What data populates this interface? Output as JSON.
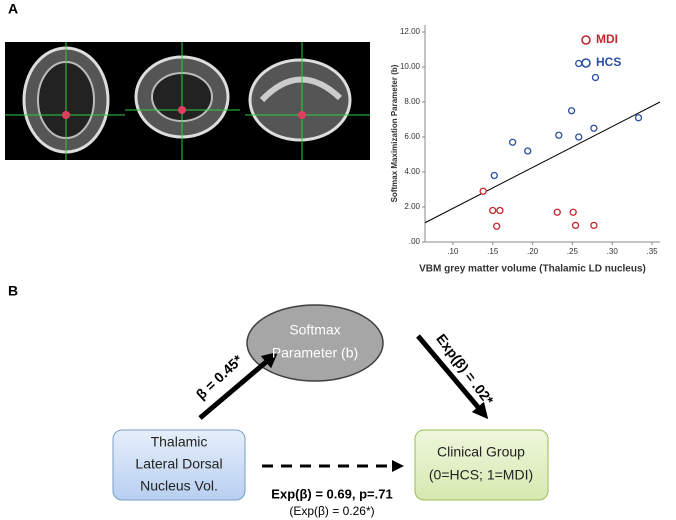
{
  "panel_labels": [
    "A",
    "B"
  ],
  "chart_data": {
    "type": "scatter",
    "xlabel": "VBM grey matter volume (Thalamic LD nucleus)",
    "ylabel": "Softmax Maximization Parameter (b)",
    "xlim": [
      0.065,
      0.36
    ],
    "ylim": [
      0,
      12.4
    ],
    "xticks": [
      {
        "value": 0.1,
        "label": ".10"
      },
      {
        "value": 0.15,
        "label": ".15"
      },
      {
        "value": 0.2,
        "label": ".20"
      },
      {
        "value": 0.25,
        "label": ".25"
      },
      {
        "value": 0.3,
        "label": ".30"
      },
      {
        "value": 0.35,
        "label": ".35"
      }
    ],
    "yticks": [
      {
        "value": 0,
        "label": ".00"
      },
      {
        "value": 2,
        "label": "2.00"
      },
      {
        "value": 4,
        "label": "4.00"
      },
      {
        "value": 6,
        "label": "6.00"
      },
      {
        "value": 8,
        "label": "8.00"
      },
      {
        "value": 10,
        "label": "10.00"
      },
      {
        "value": 12,
        "label": "12.00"
      }
    ],
    "legend": "upper right",
    "series": [
      {
        "name": "MDI",
        "color": "#c0282d",
        "x": [
          0.138,
          0.15,
          0.159,
          0.155,
          0.231,
          0.251,
          0.254,
          0.277
        ],
        "values": [
          2.9,
          1.8,
          1.8,
          0.9,
          1.7,
          1.7,
          0.95,
          0.95
        ]
      },
      {
        "name": "HCS",
        "color": "#2a4ea0",
        "x": [
          0.258,
          0.279,
          0.249,
          0.333,
          0.277,
          0.233,
          0.258,
          0.175,
          0.194,
          0.152
        ],
        "values": [
          10.2,
          9.4,
          7.5,
          7.1,
          6.5,
          6.1,
          6.0,
          5.7,
          5.2,
          3.8
        ]
      }
    ],
    "fit_line": {
      "color": "#000000",
      "x": [
        0.065,
        0.36
      ],
      "values": [
        1.1,
        8.0
      ]
    }
  },
  "diagram": {
    "nodes": [
      {
        "lines": [
          "Softmax",
          "Parameter (b)"
        ]
      },
      {
        "lines": [
          "Thalamic",
          "Lateral Dorsal",
          "Nucleus Vol."
        ]
      },
      {
        "lines": [
          "Clinical Group",
          "(0=HCS; 1=MDI)"
        ]
      }
    ],
    "edges": [
      {
        "label": "β = 0.45*"
      },
      {
        "label": "Exp(β) = .02*"
      },
      {
        "label": "Exp(β) = 0.69, p=.71",
        "sublabel": "(Exp(β) = 0.26*)"
      }
    ]
  }
}
